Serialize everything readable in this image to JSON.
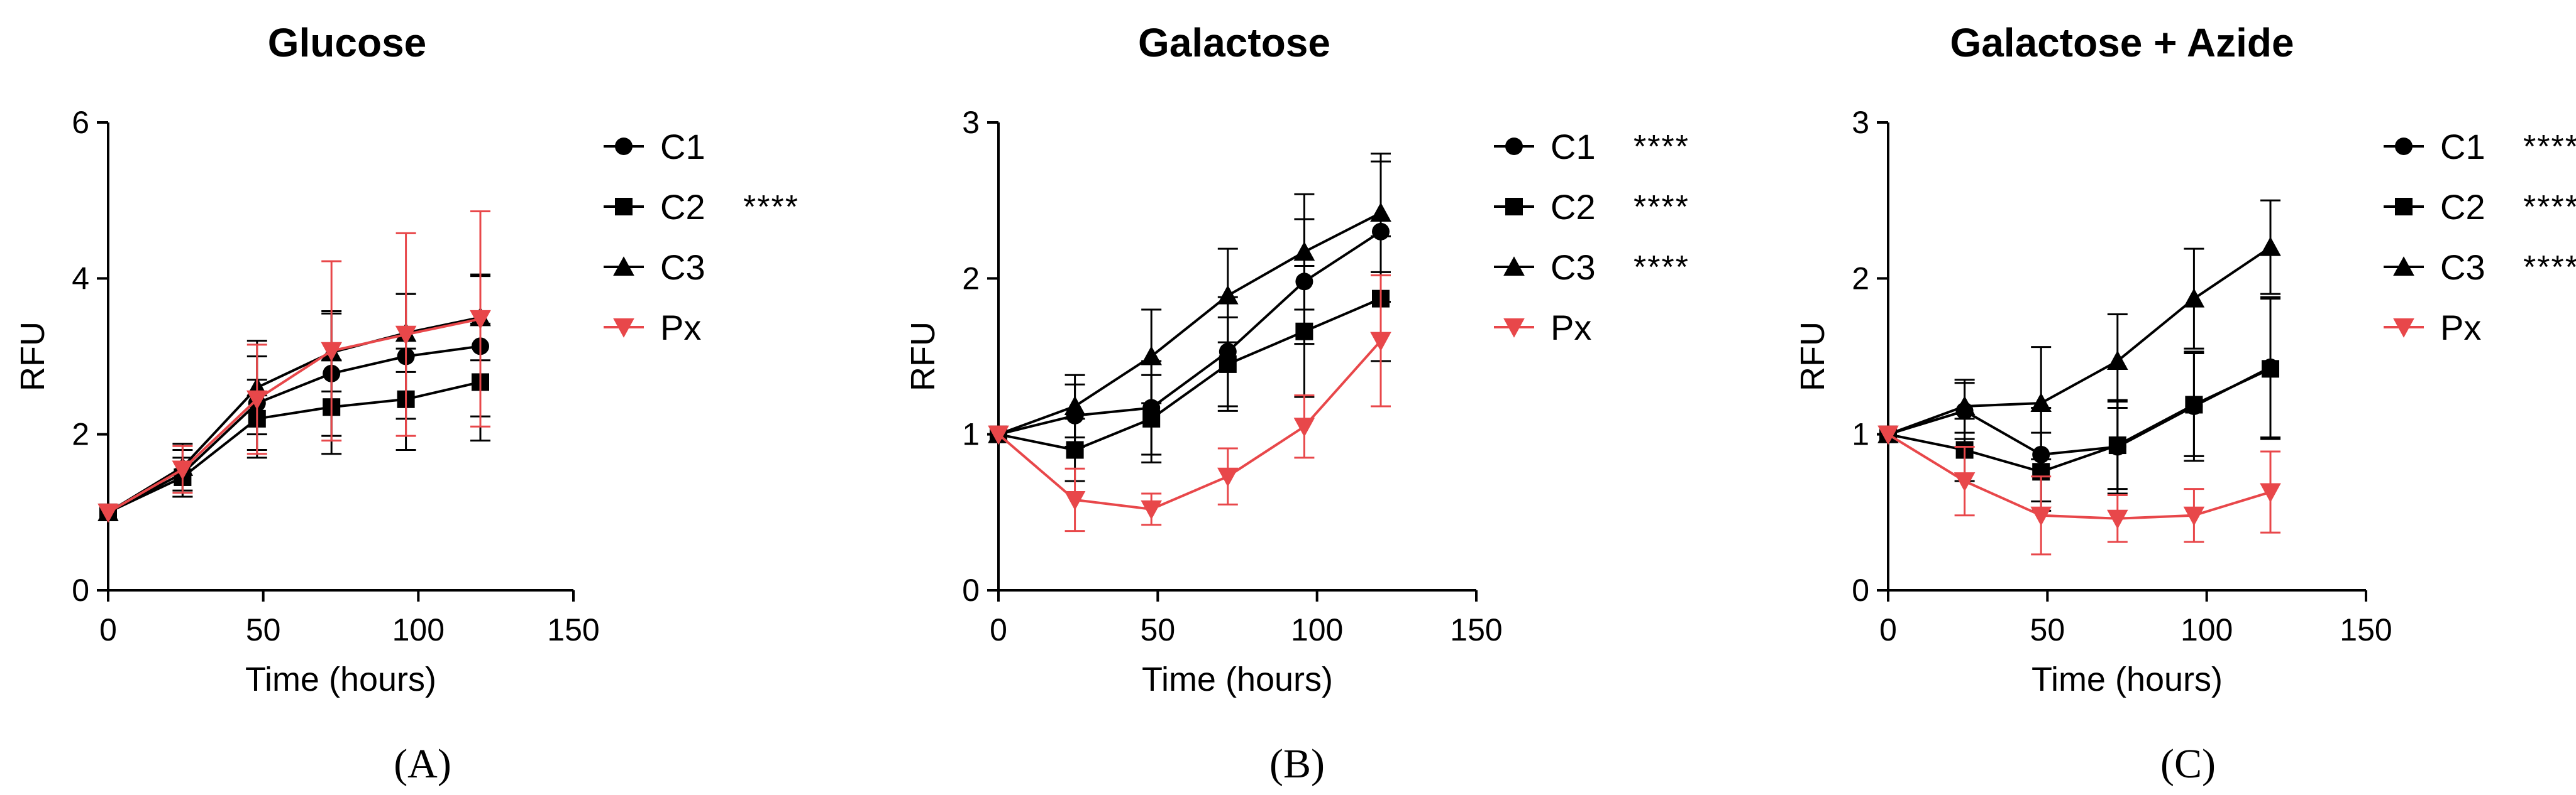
{
  "chart_data": [
    {
      "type": "line",
      "title": "Glucose",
      "panel_label": "(A)",
      "xlabel": "Time (hours)",
      "ylabel": "RFU",
      "xlim": [
        0,
        150
      ],
      "ylim": [
        0,
        6
      ],
      "xticks": [
        0,
        50,
        100,
        150
      ],
      "yticks": [
        0,
        2,
        4,
        6
      ],
      "x": [
        0,
        24,
        48,
        72,
        96,
        120
      ],
      "series": [
        {
          "name": "C1",
          "marker": "circle",
          "color": "#000000",
          "significance": "",
          "values": [
            1.0,
            1.5,
            2.4,
            2.78,
            3.0,
            3.13
          ],
          "errors": [
            0.02,
            0.3,
            0.6,
            0.8,
            0.8,
            0.9
          ]
        },
        {
          "name": "C2",
          "marker": "square",
          "color": "#000000",
          "significance": "****",
          "values": [
            1.0,
            1.45,
            2.2,
            2.35,
            2.45,
            2.67
          ],
          "errors": [
            0.02,
            0.25,
            0.5,
            0.6,
            0.65,
            0.75
          ]
        },
        {
          "name": "C3",
          "marker": "triangle",
          "color": "#000000",
          "significance": "",
          "values": [
            1.0,
            1.58,
            2.6,
            3.05,
            3.3,
            3.5
          ],
          "errors": [
            0.02,
            0.3,
            0.6,
            0.5,
            0.5,
            0.55
          ]
        },
        {
          "name": "Px",
          "marker": "triangle-down",
          "color": "#e8474a",
          "significance": "",
          "values": [
            1.0,
            1.55,
            2.45,
            3.07,
            3.28,
            3.48
          ],
          "errors": [
            0.02,
            0.3,
            0.7,
            1.15,
            1.3,
            1.38
          ]
        }
      ]
    },
    {
      "type": "line",
      "title": "Galactose",
      "panel_label": "(B)",
      "xlabel": "Time (hours)",
      "ylabel": "RFU",
      "xlim": [
        0,
        150
      ],
      "ylim": [
        0,
        3
      ],
      "xticks": [
        0,
        50,
        100,
        150
      ],
      "yticks": [
        0,
        1,
        2,
        3
      ],
      "x": [
        0,
        24,
        48,
        72,
        96,
        120
      ],
      "series": [
        {
          "name": "C1",
          "marker": "circle",
          "color": "#000000",
          "significance": "****",
          "values": [
            1.0,
            1.12,
            1.17,
            1.53,
            1.98,
            2.3
          ],
          "errors": [
            0.01,
            0.2,
            0.3,
            0.35,
            0.4,
            0.45
          ]
        },
        {
          "name": "C2",
          "marker": "square",
          "color": "#000000",
          "significance": "****",
          "values": [
            1.0,
            0.9,
            1.1,
            1.45,
            1.66,
            1.87
          ],
          "errors": [
            0.01,
            0.2,
            0.28,
            0.3,
            0.42,
            0.4
          ]
        },
        {
          "name": "C3",
          "marker": "triangle",
          "color": "#000000",
          "significance": "****",
          "values": [
            1.0,
            1.18,
            1.5,
            1.89,
            2.17,
            2.42
          ],
          "errors": [
            0.01,
            0.2,
            0.3,
            0.3,
            0.37,
            0.38
          ]
        },
        {
          "name": "Px",
          "marker": "triangle-down",
          "color": "#e8474a",
          "significance": "",
          "values": [
            1.0,
            0.58,
            0.52,
            0.73,
            1.05,
            1.6
          ],
          "errors": [
            0.01,
            0.2,
            0.1,
            0.18,
            0.2,
            0.42
          ]
        }
      ]
    },
    {
      "type": "line",
      "title": "Galactose  + Azide",
      "panel_label": "(C)",
      "xlabel": "Time (hours)",
      "ylabel": "RFU",
      "xlim": [
        0,
        150
      ],
      "ylim": [
        0,
        3
      ],
      "xticks": [
        0,
        50,
        100,
        150
      ],
      "yticks": [
        0,
        1,
        2,
        3
      ],
      "x": [
        0,
        24,
        48,
        72,
        96,
        120
      ],
      "series": [
        {
          "name": "C1",
          "marker": "circle",
          "color": "#000000",
          "significance": "****",
          "values": [
            1.0,
            1.15,
            0.87,
            0.92,
            1.18,
            1.43
          ],
          "errors": [
            0.01,
            0.18,
            0.3,
            0.3,
            0.35,
            0.45
          ]
        },
        {
          "name": "C2",
          "marker": "square",
          "color": "#000000",
          "significance": "****",
          "values": [
            1.0,
            0.9,
            0.76,
            0.93,
            1.19,
            1.42
          ],
          "errors": [
            0.01,
            0.2,
            0.25,
            0.28,
            0.33,
            0.45
          ]
        },
        {
          "name": "C3",
          "marker": "triangle",
          "color": "#000000",
          "significance": "****",
          "values": [
            1.0,
            1.18,
            1.2,
            1.47,
            1.87,
            2.2
          ],
          "errors": [
            0.01,
            0.17,
            0.36,
            0.3,
            0.32,
            0.3
          ]
        },
        {
          "name": "Px",
          "marker": "triangle-down",
          "color": "#e8474a",
          "significance": "",
          "values": [
            1.0,
            0.7,
            0.48,
            0.46,
            0.48,
            0.63
          ],
          "errors": [
            0.01,
            0.22,
            0.25,
            0.15,
            0.17,
            0.26
          ]
        }
      ]
    }
  ]
}
